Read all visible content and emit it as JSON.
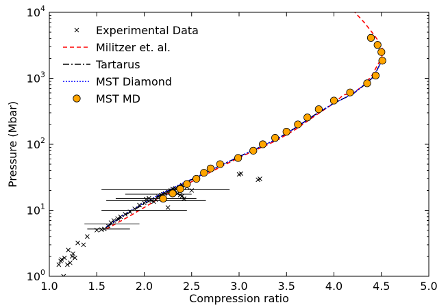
{
  "chart_data": {
    "type": "scatter",
    "title": "",
    "xlabel": "Compression ratio",
    "ylabel": "Pressure (Mbar)",
    "xlim": [
      1.0,
      5.0
    ],
    "ylim": [
      1,
      10000
    ],
    "yscale": "log",
    "grid": false,
    "legend_position": "top-left",
    "x_ticks": [
      {
        "value": 1.0,
        "label": "1.0"
      },
      {
        "value": 1.5,
        "label": "1.5"
      },
      {
        "value": 2.0,
        "label": "2.0"
      },
      {
        "value": 2.5,
        "label": "2.5"
      },
      {
        "value": 3.0,
        "label": "3.0"
      },
      {
        "value": 3.5,
        "label": "3.5"
      },
      {
        "value": 4.0,
        "label": "4.0"
      },
      {
        "value": 4.5,
        "label": "4.5"
      },
      {
        "value": 5.0,
        "label": "5.0"
      }
    ],
    "y_ticks": [
      {
        "value": 1,
        "base": "10",
        "exp": "0"
      },
      {
        "value": 10,
        "base": "10",
        "exp": "1"
      },
      {
        "value": 100,
        "base": "10",
        "exp": "2"
      },
      {
        "value": 1000,
        "base": "10",
        "exp": "3"
      },
      {
        "value": 10000,
        "base": "10",
        "exp": "4"
      }
    ],
    "series": [
      {
        "name": "Experimental Data",
        "kind": "marker-x",
        "color": "#000000",
        "points": [
          [
            1.1,
            1.5
          ],
          [
            1.12,
            1.7
          ],
          [
            1.13,
            1.8
          ],
          [
            1.15,
            1.0
          ],
          [
            1.16,
            1.9
          ],
          [
            1.19,
            1.5
          ],
          [
            1.2,
            2.5
          ],
          [
            1.22,
            1.6
          ],
          [
            1.24,
            2.0
          ],
          [
            1.25,
            2.2
          ],
          [
            1.27,
            1.9
          ],
          [
            1.3,
            3.2
          ],
          [
            1.36,
            3.0
          ],
          [
            1.4,
            4.0
          ],
          [
            1.5,
            5.0
          ],
          [
            1.55,
            5.1
          ],
          [
            1.58,
            5.2
          ],
          [
            1.62,
            5.8
          ],
          [
            1.65,
            6.5
          ],
          [
            1.68,
            7.0
          ],
          [
            1.72,
            7.5
          ],
          [
            1.75,
            8.0
          ],
          [
            1.8,
            8.7
          ],
          [
            1.85,
            9.5
          ],
          [
            1.9,
            10.5
          ],
          [
            1.95,
            12.0
          ],
          [
            2.0,
            13.0
          ],
          [
            2.02,
            14.8
          ],
          [
            2.05,
            15.2
          ],
          [
            2.08,
            14.0
          ],
          [
            2.1,
            13.5
          ],
          [
            2.12,
            14.5
          ],
          [
            2.15,
            16.0
          ],
          [
            2.18,
            17.0
          ],
          [
            2.2,
            17.5
          ],
          [
            2.22,
            18.0
          ],
          [
            2.25,
            19.0
          ],
          [
            2.28,
            20.0
          ],
          [
            2.3,
            21.0
          ],
          [
            2.32,
            20.5
          ],
          [
            2.35,
            18.0
          ],
          [
            2.38,
            17.0
          ],
          [
            2.4,
            16.5
          ],
          [
            2.42,
            15.0
          ],
          [
            2.25,
            11.0
          ],
          [
            2.3,
            19.5
          ],
          [
            2.33,
            21.5
          ],
          [
            2.37,
            22.0
          ],
          [
            2.4,
            24.0
          ],
          [
            2.45,
            22.5
          ],
          [
            2.5,
            20.0
          ],
          [
            3.0,
            35.0
          ],
          [
            3.02,
            36.0
          ],
          [
            3.2,
            29.0
          ],
          [
            3.22,
            30.0
          ]
        ],
        "error_bars": [
          {
            "y": 20.5,
            "xmin": 1.55,
            "xmax": 2.9
          },
          {
            "y": 17.5,
            "xmin": 1.8,
            "xmax": 2.5
          },
          {
            "y": 15.0,
            "xmin": 1.7,
            "xmax": 2.55
          },
          {
            "y": 14.0,
            "xmin": 1.6,
            "xmax": 2.65
          },
          {
            "y": 10.0,
            "xmin": 1.55,
            "xmax": 2.45
          },
          {
            "y": 6.2,
            "xmin": 1.37,
            "xmax": 1.95
          },
          {
            "y": 5.2,
            "xmin": 1.4,
            "xmax": 1.85
          }
        ]
      },
      {
        "name": "Militzer et. al.",
        "kind": "line",
        "dash": "6,4",
        "color": "#ff0000",
        "points": [
          [
            1.6,
            5.2
          ],
          [
            1.8,
            7.5
          ],
          [
            2.0,
            11.0
          ],
          [
            2.2,
            16.5
          ],
          [
            2.4,
            23.0
          ],
          [
            2.6,
            32.0
          ],
          [
            2.8,
            45.0
          ],
          [
            3.0,
            63.0
          ],
          [
            3.2,
            85.0
          ],
          [
            3.4,
            115.0
          ],
          [
            3.6,
            170.0
          ],
          [
            3.8,
            270.0
          ],
          [
            4.0,
            420.0
          ],
          [
            4.1,
            560.0
          ],
          [
            4.2,
            600.0
          ],
          [
            4.3,
            750.0
          ],
          [
            4.4,
            1100.0
          ],
          [
            4.45,
            1500.0
          ],
          [
            4.5,
            2000.0
          ],
          [
            4.52,
            2600.0
          ],
          [
            4.48,
            3500.0
          ],
          [
            4.4,
            5000.0
          ],
          [
            4.32,
            7000.0
          ],
          [
            4.25,
            9000.0
          ],
          [
            4.22,
            10000.0
          ]
        ]
      },
      {
        "name": "Tartarus",
        "kind": "line",
        "dash": "9,3,2,3",
        "color": "#000000",
        "points": [
          [
            1.6,
            5.5
          ],
          [
            1.8,
            8.5
          ],
          [
            2.0,
            12.5
          ],
          [
            2.2,
            18.0
          ],
          [
            2.4,
            25.0
          ],
          [
            2.6,
            34.0
          ],
          [
            2.8,
            47.0
          ],
          [
            3.0,
            65.0
          ],
          [
            3.2,
            88.0
          ],
          [
            3.4,
            120.0
          ],
          [
            3.6,
            180.0
          ],
          [
            3.8,
            280.0
          ],
          [
            4.0,
            420.0
          ],
          [
            4.2,
            580.0
          ],
          [
            4.3,
            750.0
          ],
          [
            4.4,
            1000.0
          ],
          [
            4.45,
            1300.0
          ],
          [
            4.5,
            1800.0
          ]
        ]
      },
      {
        "name": "MST Diamond",
        "kind": "line",
        "dash": "2,2",
        "color": "#0000ff",
        "points": [
          [
            1.6,
            5.6
          ],
          [
            1.8,
            8.8
          ],
          [
            2.0,
            13.0
          ],
          [
            2.2,
            18.5
          ],
          [
            2.4,
            25.5
          ],
          [
            2.6,
            34.5
          ],
          [
            2.8,
            47.5
          ],
          [
            3.0,
            65.0
          ],
          [
            3.2,
            88.0
          ],
          [
            3.4,
            120.0
          ],
          [
            3.6,
            180.0
          ],
          [
            3.8,
            280.0
          ],
          [
            4.0,
            420.0
          ],
          [
            4.2,
            580.0
          ],
          [
            4.3,
            760.0
          ],
          [
            4.4,
            1000.0
          ],
          [
            4.45,
            1300.0
          ],
          [
            4.5,
            1800.0
          ]
        ]
      },
      {
        "name": "MST MD",
        "kind": "marker-circle",
        "color": "#ffa500",
        "points": [
          [
            2.2,
            15.0
          ],
          [
            2.3,
            18.0
          ],
          [
            2.38,
            21.0
          ],
          [
            2.45,
            25.0
          ],
          [
            2.55,
            30.0
          ],
          [
            2.63,
            37.0
          ],
          [
            2.7,
            43.0
          ],
          [
            2.8,
            50.0
          ],
          [
            2.99,
            62.0
          ],
          [
            3.15,
            80.0
          ],
          [
            3.25,
            100.0
          ],
          [
            3.38,
            125.0
          ],
          [
            3.5,
            155.0
          ],
          [
            3.62,
            200.0
          ],
          [
            3.72,
            255.0
          ],
          [
            3.84,
            340.0
          ],
          [
            4.0,
            460.0
          ],
          [
            4.17,
            610.0
          ],
          [
            4.35,
            840.0
          ],
          [
            4.44,
            1100.0
          ],
          [
            4.51,
            1850.0
          ],
          [
            4.5,
            2500.0
          ],
          [
            4.46,
            3200.0
          ],
          [
            4.39,
            4100.0
          ]
        ]
      }
    ]
  }
}
